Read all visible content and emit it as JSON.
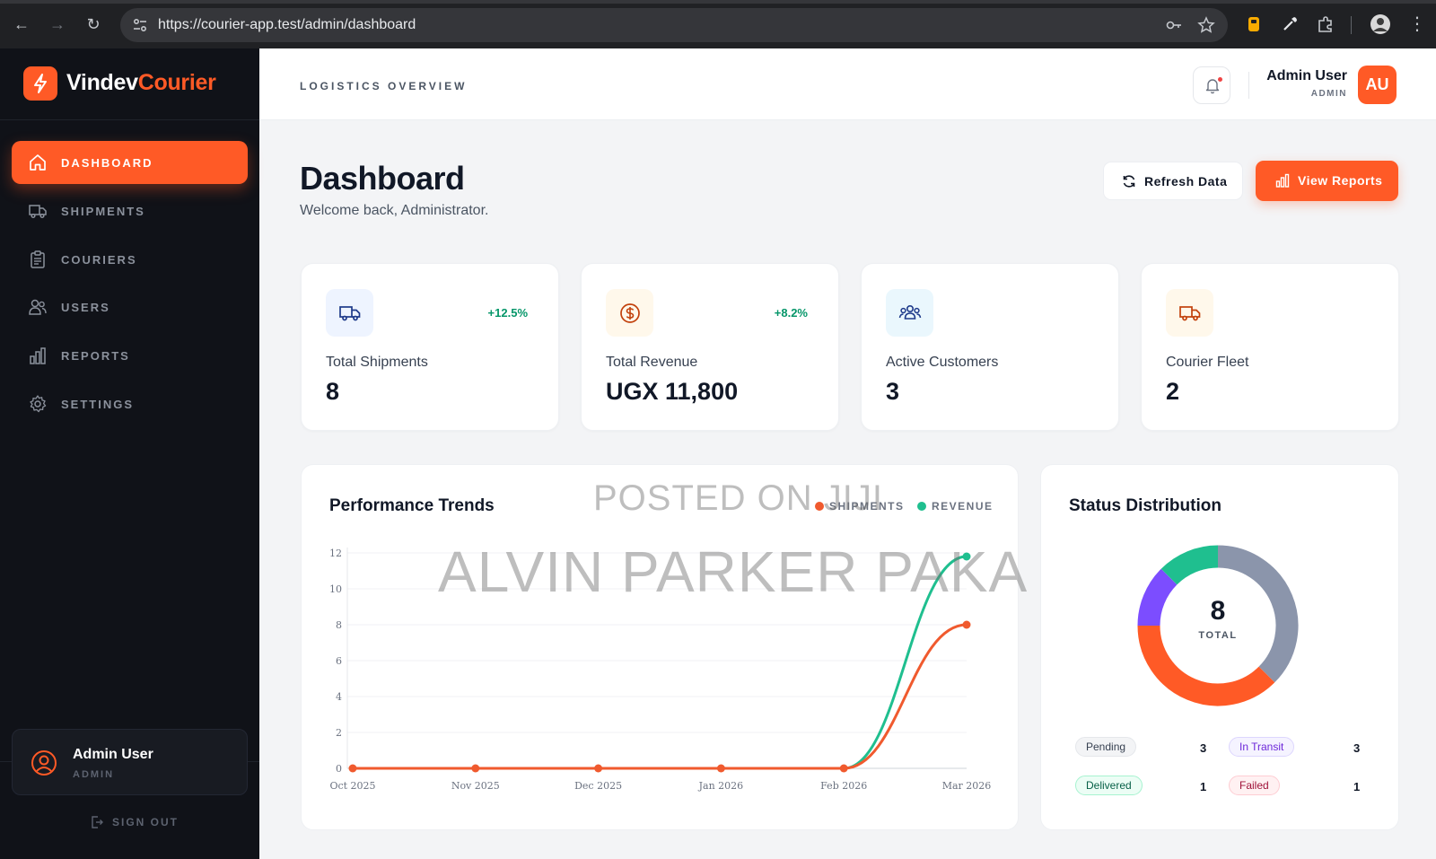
{
  "browser": {
    "url": "https://courier-app.test/admin/dashboard"
  },
  "brand": {
    "name_main": "Vindev",
    "name_accent": "Courier",
    "accent_color": "#ff5a26"
  },
  "sidebar": {
    "items": [
      {
        "label": "DASHBOARD",
        "icon": "home-icon",
        "active": true
      },
      {
        "label": "SHIPMENTS",
        "icon": "truck-icon",
        "active": false
      },
      {
        "label": "COURIERS",
        "icon": "clipboard-icon",
        "active": false
      },
      {
        "label": "USERS",
        "icon": "users-icon",
        "active": false
      },
      {
        "label": "REPORTS",
        "icon": "bar-chart-icon",
        "active": false
      },
      {
        "label": "SETTINGS",
        "icon": "gear-icon",
        "active": false
      }
    ],
    "user": {
      "name": "Admin User",
      "role": "ADMIN"
    },
    "sign_out": "SIGN OUT"
  },
  "header": {
    "section": "LOGISTICS OVERVIEW",
    "user_name": "Admin User",
    "user_role": "ADMIN",
    "avatar_initials": "AU"
  },
  "main": {
    "title": "Dashboard",
    "subtitle": "Welcome back, Administrator.",
    "refresh_label": "Refresh Data",
    "reports_label": "View Reports"
  },
  "stats": [
    {
      "label": "Total Shipments",
      "value": "8",
      "trend": "+12.5%",
      "icon": "truck-icon",
      "bg": "#eef4ff",
      "color": "#1e3a8a"
    },
    {
      "label": "Total Revenue",
      "value": "UGX 11,800",
      "trend": "+8.2%",
      "icon": "dollar-icon",
      "bg": "#fff8eb",
      "color": "#c2410c"
    },
    {
      "label": "Active Customers",
      "value": "3",
      "trend": "",
      "icon": "users-icon",
      "bg": "#eaf7fd",
      "color": "#1e3a8a"
    },
    {
      "label": "Courier Fleet",
      "value": "2",
      "trend": "",
      "icon": "truck-icon",
      "bg": "#fff8eb",
      "color": "#c2410c"
    }
  ],
  "performance": {
    "title": "Performance Trends",
    "legend": [
      {
        "name": "SHIPMENTS",
        "color": "#f05a2e"
      },
      {
        "name": "REVENUE",
        "color": "#1fbf8f"
      }
    ]
  },
  "chart_data": {
    "type": "line",
    "categories": [
      "Oct 2025",
      "Nov 2025",
      "Dec 2025",
      "Jan 2026",
      "Feb 2026",
      "Mar 2026"
    ],
    "series": [
      {
        "name": "SHIPMENTS",
        "color": "#f05a2e",
        "values": [
          0,
          0,
          0,
          0,
          0,
          8
        ]
      },
      {
        "name": "REVENUE",
        "color": "#1fbf8f",
        "values": [
          0,
          0,
          0,
          0,
          0,
          11.8
        ]
      }
    ],
    "yticks": [
      "0",
      "2",
      "4",
      "6",
      "8",
      "10",
      "12"
    ],
    "ylim": [
      0,
      12
    ],
    "grid": true,
    "legend_position": "top-right"
  },
  "status": {
    "title": "Status Distribution",
    "total": "8",
    "total_label": "TOTAL",
    "items": [
      {
        "label": "Pending",
        "count": "3",
        "value": 3,
        "color": "#8b95ab"
      },
      {
        "label": "In Transit",
        "count": "3",
        "value": 3,
        "color": "#ff5a26"
      },
      {
        "label": "Delivered",
        "count": "1",
        "value": 1,
        "color": "#1fbf8f"
      },
      {
        "label": "Failed",
        "count": "1",
        "value": 1,
        "color": "#7c4dff"
      }
    ]
  },
  "watermark": {
    "line1": "POSTED ON JIJI",
    "line2": "ALVIN PARKER PAKA"
  }
}
